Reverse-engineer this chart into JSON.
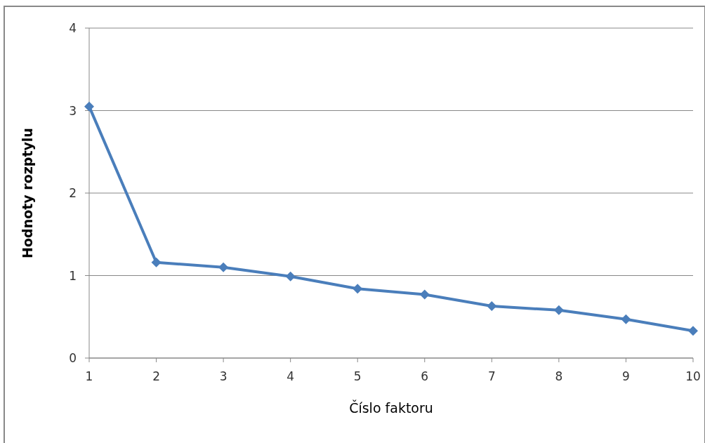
{
  "chart_data": {
    "type": "line",
    "xlabel": "Číslo faktoru",
    "ylabel": "Hodnoty rozptylu",
    "categories": [
      "1",
      "2",
      "3",
      "4",
      "5",
      "6",
      "7",
      "8",
      "9",
      "10"
    ],
    "series": [
      {
        "color": "#4a7ebb",
        "values": [
          3.05,
          1.16,
          1.1,
          0.99,
          0.84,
          0.77,
          0.63,
          0.58,
          0.47,
          0.33
        ]
      }
    ],
    "ylim": [
      0,
      4
    ],
    "yticks": [
      0,
      1,
      2,
      3,
      4
    ],
    "grid": "y",
    "marker": "diamond",
    "line_style": "solid"
  }
}
